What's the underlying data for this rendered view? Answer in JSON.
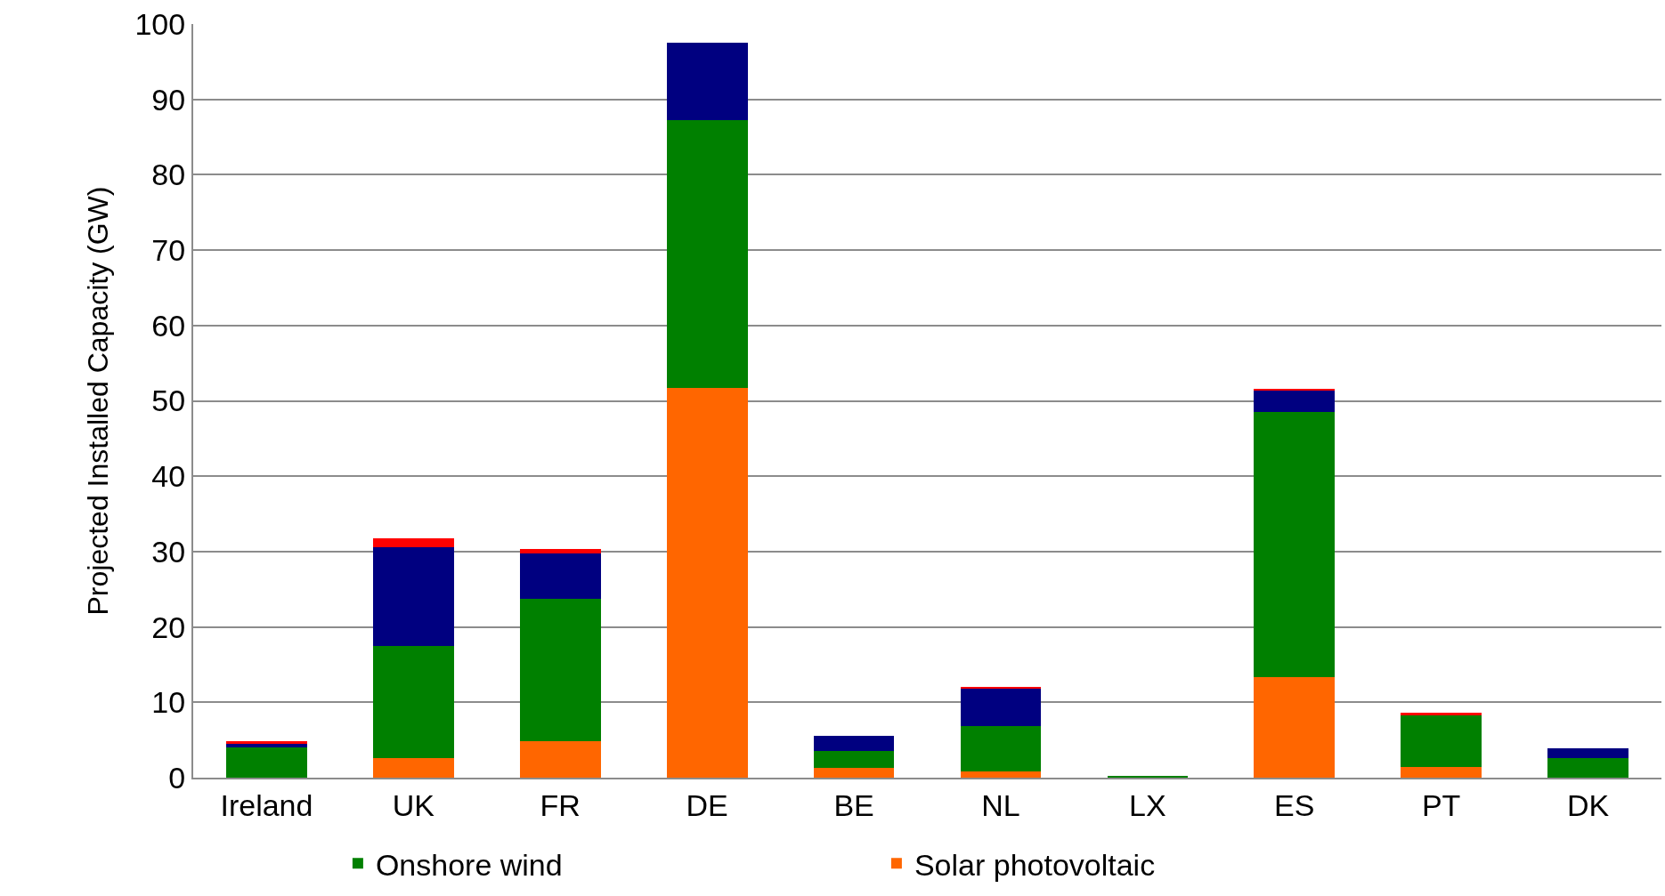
{
  "chart_data": {
    "type": "bar",
    "stacked": true,
    "ylabel": "Projected Installed Capacity (GW)",
    "categories": [
      "Ireland",
      "UK",
      "FR",
      "DE",
      "BE",
      "NL",
      "LX",
      "ES",
      "PT",
      "DK"
    ],
    "series": [
      {
        "name": "Solar photovoltaic",
        "color": "#ff6600",
        "values": [
          0,
          2.6,
          4.9,
          51.7,
          1.3,
          0.8,
          0,
          13.4,
          1.4,
          0
        ]
      },
      {
        "name": "Onshore wind",
        "color": "#008000",
        "values": [
          4.0,
          14.9,
          18.8,
          35.6,
          2.3,
          6.0,
          0.2,
          35.1,
          6.9,
          2.6
        ]
      },
      {
        "color": "#000080",
        "values": [
          0.6,
          13.1,
          6.1,
          10.2,
          1.9,
          5.0,
          0,
          2.9,
          0,
          1.3
        ]
      },
      {
        "color": "#ff0000",
        "values": [
          0.2,
          1.2,
          0.5,
          0,
          0,
          0.3,
          0,
          0.2,
          0.3,
          0
        ]
      }
    ],
    "ylim": [
      0,
      100
    ],
    "yticks": [
      0,
      10,
      20,
      30,
      40,
      50,
      60,
      70,
      80,
      90,
      100
    ],
    "grid": "y",
    "legend": "bottom"
  }
}
